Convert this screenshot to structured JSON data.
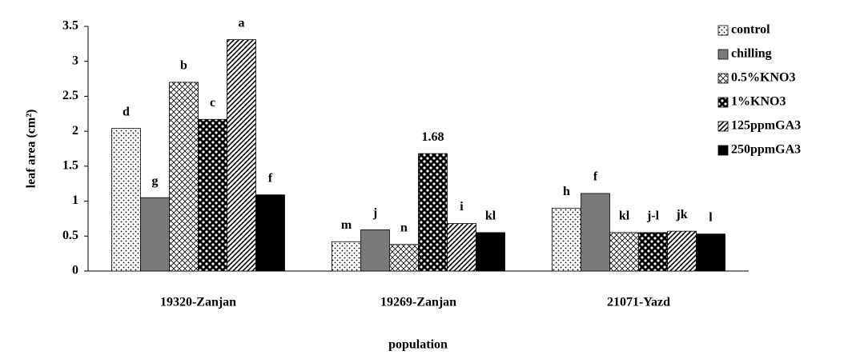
{
  "chart_data": {
    "type": "bar",
    "categories": [
      "19320-Zanjan",
      "19269-Zanjan",
      "21071-Yazd"
    ],
    "series": [
      {
        "name": "control",
        "color": "#ffffff",
        "pattern": "dots",
        "values": [
          2.04,
          0.42,
          0.9
        ],
        "annotations": [
          "d",
          "m",
          "h"
        ]
      },
      {
        "name": "chilling",
        "color": "#7a7a7a",
        "pattern": "solid",
        "values": [
          1.05,
          0.59,
          1.11
        ],
        "annotations": [
          "g",
          "j",
          "f"
        ]
      },
      {
        "name": "0.5%KNO3",
        "color": "#ffffff",
        "pattern": "crosshatch",
        "values": [
          2.7,
          0.38,
          0.55
        ],
        "annotations": [
          "b",
          "n",
          "kl"
        ]
      },
      {
        "name": "1%KNO3",
        "color": "#000000",
        "pattern": "checker",
        "values": [
          2.17,
          1.68,
          0.55
        ],
        "annotations": [
          "c",
          "1.68",
          "j-l"
        ]
      },
      {
        "name": "125ppmGA3",
        "color": "#ffffff",
        "pattern": "stripes",
        "values": [
          3.31,
          0.68,
          0.57
        ],
        "annotations": [
          "a",
          "i",
          "jk"
        ]
      },
      {
        "name": "250ppmGA3",
        "color": "#000000",
        "pattern": "solid",
        "values": [
          1.09,
          0.55,
          0.53
        ],
        "annotations": [
          "f",
          "kl",
          "l"
        ]
      }
    ],
    "xlabel": "population",
    "ylabel": "leaf area (cm²)",
    "ylim": [
      0,
      3.5
    ],
    "yticks": [
      0,
      0.5,
      1,
      1.5,
      2,
      2.5,
      3,
      3.5
    ],
    "grid": false,
    "legend": "upper right"
  }
}
